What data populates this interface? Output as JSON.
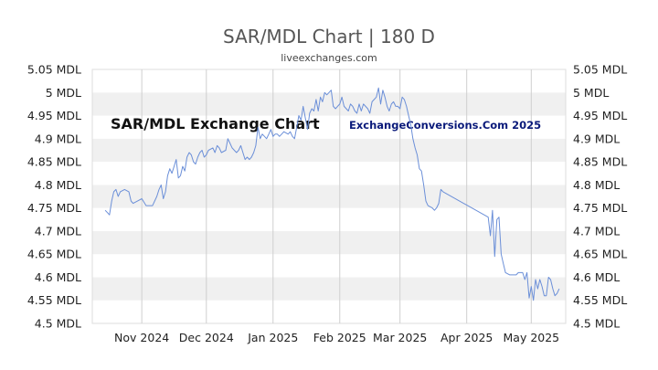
{
  "chart_data": {
    "type": "line",
    "title": "SAR/MDL Chart | 180 D",
    "subtitle": "liveexchanges.com",
    "watermark_left": "SAR/MDL Exchange Chart",
    "watermark_right": "ExchangeConversions.Com 2025",
    "xlabel": "",
    "ylabel": "",
    "ylim": [
      4.5,
      5.05
    ],
    "yticks": [
      "4.5 MDL",
      "4.55 MDL",
      "4.6 MDL",
      "4.65 MDL",
      "4.7 MDL",
      "4.75 MDL",
      "4.8 MDL",
      "4.85 MDL",
      "4.9 MDL",
      "4.95 MDL",
      "5 MDL",
      "5.05 MDL"
    ],
    "xlim": [
      "2024-10-09",
      "2025-05-17"
    ],
    "xticks": [
      {
        "label": "Nov 2024",
        "date": "2024-11-01"
      },
      {
        "label": "Dec 2024",
        "date": "2024-12-01"
      },
      {
        "label": "Jan 2025",
        "date": "2025-01-01"
      },
      {
        "label": "Feb 2025",
        "date": "2025-02-01"
      },
      {
        "label": "Mar 2025",
        "date": "2025-03-01"
      },
      {
        "label": "Apr 2025",
        "date": "2025-04-01"
      },
      {
        "label": "May 2025",
        "date": "2025-05-01"
      }
    ],
    "grid": "alternating horizontal bands",
    "line_color": "#6b8fd8",
    "band_color": "#f0f0f0",
    "series": [
      {
        "points": [
          [
            "2024-10-15",
            4.745
          ],
          [
            "2024-10-16",
            4.74
          ],
          [
            "2024-10-17",
            4.735
          ],
          [
            "2024-10-18",
            4.765
          ],
          [
            "2024-10-19",
            4.785
          ],
          [
            "2024-10-20",
            4.79
          ],
          [
            "2024-10-21",
            4.775
          ],
          [
            "2024-10-22",
            4.785
          ],
          [
            "2024-10-24",
            4.79
          ],
          [
            "2024-10-26",
            4.785
          ],
          [
            "2024-10-27",
            4.765
          ],
          [
            "2024-10-28",
            4.76
          ],
          [
            "2024-10-30",
            4.765
          ],
          [
            "2024-11-01",
            4.77
          ],
          [
            "2024-11-03",
            4.755
          ],
          [
            "2024-11-06",
            4.755
          ],
          [
            "2024-11-08",
            4.775
          ],
          [
            "2024-11-09",
            4.79
          ],
          [
            "2024-11-10",
            4.8
          ],
          [
            "2024-11-11",
            4.77
          ],
          [
            "2024-11-12",
            4.785
          ],
          [
            "2024-11-13",
            4.82
          ],
          [
            "2024-11-14",
            4.835
          ],
          [
            "2024-11-15",
            4.825
          ],
          [
            "2024-11-16",
            4.84
          ],
          [
            "2024-11-17",
            4.855
          ],
          [
            "2024-11-18",
            4.815
          ],
          [
            "2024-11-19",
            4.82
          ],
          [
            "2024-11-20",
            4.84
          ],
          [
            "2024-11-21",
            4.83
          ],
          [
            "2024-11-22",
            4.86
          ],
          [
            "2024-11-23",
            4.87
          ],
          [
            "2024-11-24",
            4.865
          ],
          [
            "2024-11-25",
            4.85
          ],
          [
            "2024-11-26",
            4.845
          ],
          [
            "2024-11-27",
            4.86
          ],
          [
            "2024-11-28",
            4.87
          ],
          [
            "2024-11-29",
            4.875
          ],
          [
            "2024-11-30",
            4.86
          ],
          [
            "2024-12-01",
            4.865
          ],
          [
            "2024-12-02",
            4.875
          ],
          [
            "2024-12-04",
            4.88
          ],
          [
            "2024-12-05",
            4.87
          ],
          [
            "2024-12-06",
            4.885
          ],
          [
            "2024-12-07",
            4.88
          ],
          [
            "2024-12-08",
            4.87
          ],
          [
            "2024-12-10",
            4.875
          ],
          [
            "2024-12-11",
            4.9
          ],
          [
            "2024-12-12",
            4.89
          ],
          [
            "2024-12-13",
            4.88
          ],
          [
            "2024-12-14",
            4.875
          ],
          [
            "2024-12-15",
            4.87
          ],
          [
            "2024-12-16",
            4.875
          ],
          [
            "2024-12-17",
            4.885
          ],
          [
            "2024-12-18",
            4.87
          ],
          [
            "2024-12-19",
            4.855
          ],
          [
            "2024-12-20",
            4.86
          ],
          [
            "2024-12-21",
            4.855
          ],
          [
            "2024-12-22",
            4.86
          ],
          [
            "2024-12-23",
            4.87
          ],
          [
            "2024-12-24",
            4.885
          ],
          [
            "2024-12-25",
            4.925
          ],
          [
            "2024-12-26",
            4.9
          ],
          [
            "2024-12-27",
            4.91
          ],
          [
            "2024-12-28",
            4.905
          ],
          [
            "2024-12-29",
            4.9
          ],
          [
            "2024-12-30",
            4.91
          ],
          [
            "2024-12-31",
            4.92
          ],
          [
            "2025-01-01",
            4.905
          ],
          [
            "2025-01-02",
            4.91
          ],
          [
            "2025-01-03",
            4.91
          ],
          [
            "2025-01-04",
            4.905
          ],
          [
            "2025-01-05",
            4.91
          ],
          [
            "2025-01-06",
            4.915
          ],
          [
            "2025-01-08",
            4.91
          ],
          [
            "2025-01-09",
            4.915
          ],
          [
            "2025-01-10",
            4.905
          ],
          [
            "2025-01-11",
            4.9
          ],
          [
            "2025-01-12",
            4.925
          ],
          [
            "2025-01-13",
            4.95
          ],
          [
            "2025-01-14",
            4.94
          ],
          [
            "2025-01-15",
            4.97
          ],
          [
            "2025-01-16",
            4.945
          ],
          [
            "2025-01-17",
            4.92
          ],
          [
            "2025-01-18",
            4.955
          ],
          [
            "2025-01-19",
            4.965
          ],
          [
            "2025-01-20",
            4.96
          ],
          [
            "2025-01-21",
            4.985
          ],
          [
            "2025-01-22",
            4.96
          ],
          [
            "2025-01-23",
            4.99
          ],
          [
            "2025-01-24",
            4.98
          ],
          [
            "2025-01-25",
            5.0
          ],
          [
            "2025-01-26",
            4.995
          ],
          [
            "2025-01-27",
            5.0
          ],
          [
            "2025-01-28",
            5.005
          ],
          [
            "2025-01-29",
            4.97
          ],
          [
            "2025-01-30",
            4.965
          ],
          [
            "2025-01-31",
            4.97
          ],
          [
            "2025-02-01",
            4.975
          ],
          [
            "2025-02-02",
            4.99
          ],
          [
            "2025-02-03",
            4.97
          ],
          [
            "2025-02-05",
            4.96
          ],
          [
            "2025-02-06",
            4.975
          ],
          [
            "2025-02-07",
            4.97
          ],
          [
            "2025-02-08",
            4.96
          ],
          [
            "2025-02-09",
            4.955
          ],
          [
            "2025-02-10",
            4.975
          ],
          [
            "2025-02-11",
            4.96
          ],
          [
            "2025-02-12",
            4.975
          ],
          [
            "2025-02-13",
            4.97
          ],
          [
            "2025-02-14",
            4.965
          ],
          [
            "2025-02-15",
            4.955
          ],
          [
            "2025-02-16",
            4.98
          ],
          [
            "2025-02-17",
            4.985
          ],
          [
            "2025-02-18",
            4.99
          ],
          [
            "2025-02-19",
            5.01
          ],
          [
            "2025-02-20",
            4.975
          ],
          [
            "2025-02-21",
            5.005
          ],
          [
            "2025-02-22",
            4.99
          ],
          [
            "2025-02-23",
            4.97
          ],
          [
            "2025-02-24",
            4.96
          ],
          [
            "2025-02-25",
            4.975
          ],
          [
            "2025-02-26",
            4.98
          ],
          [
            "2025-02-27",
            4.97
          ],
          [
            "2025-02-28",
            4.97
          ],
          [
            "2025-03-01",
            4.965
          ],
          [
            "2025-03-02",
            4.99
          ],
          [
            "2025-03-03",
            4.985
          ],
          [
            "2025-03-04",
            4.97
          ],
          [
            "2025-03-05",
            4.95
          ],
          [
            "2025-03-06",
            4.93
          ],
          [
            "2025-03-07",
            4.9
          ],
          [
            "2025-03-08",
            4.88
          ],
          [
            "2025-03-09",
            4.865
          ],
          [
            "2025-03-10",
            4.835
          ],
          [
            "2025-03-11",
            4.83
          ],
          [
            "2025-03-12",
            4.8
          ],
          [
            "2025-03-13",
            4.765
          ],
          [
            "2025-03-14",
            4.755
          ],
          [
            "2025-03-16",
            4.75
          ],
          [
            "2025-03-17",
            4.745
          ],
          [
            "2025-03-18",
            4.75
          ],
          [
            "2025-03-19",
            4.76
          ],
          [
            "2025-03-20",
            4.79
          ],
          [
            "2025-03-21",
            4.785
          ],
          [
            "2025-04-11",
            4.73
          ],
          [
            "2025-04-12",
            4.69
          ],
          [
            "2025-04-13",
            4.745
          ],
          [
            "2025-04-14",
            4.645
          ],
          [
            "2025-04-15",
            4.725
          ],
          [
            "2025-04-16",
            4.73
          ],
          [
            "2025-04-17",
            4.65
          ],
          [
            "2025-04-18",
            4.63
          ],
          [
            "2025-04-19",
            4.61
          ],
          [
            "2025-04-21",
            4.605
          ],
          [
            "2025-04-24",
            4.605
          ],
          [
            "2025-04-25",
            4.61
          ],
          [
            "2025-04-27",
            4.61
          ],
          [
            "2025-04-28",
            4.595
          ],
          [
            "2025-04-29",
            4.61
          ],
          [
            "2025-04-30",
            4.555
          ],
          [
            "2025-05-01",
            4.58
          ],
          [
            "2025-05-02",
            4.55
          ],
          [
            "2025-05-03",
            4.595
          ],
          [
            "2025-05-04",
            4.575
          ],
          [
            "2025-05-05",
            4.595
          ],
          [
            "2025-05-06",
            4.58
          ],
          [
            "2025-05-07",
            4.56
          ],
          [
            "2025-05-08",
            4.56
          ],
          [
            "2025-05-09",
            4.6
          ],
          [
            "2025-05-10",
            4.595
          ],
          [
            "2025-05-11",
            4.575
          ],
          [
            "2025-05-12",
            4.56
          ],
          [
            "2025-05-13",
            4.565
          ],
          [
            "2025-05-14",
            4.575
          ]
        ]
      }
    ]
  }
}
